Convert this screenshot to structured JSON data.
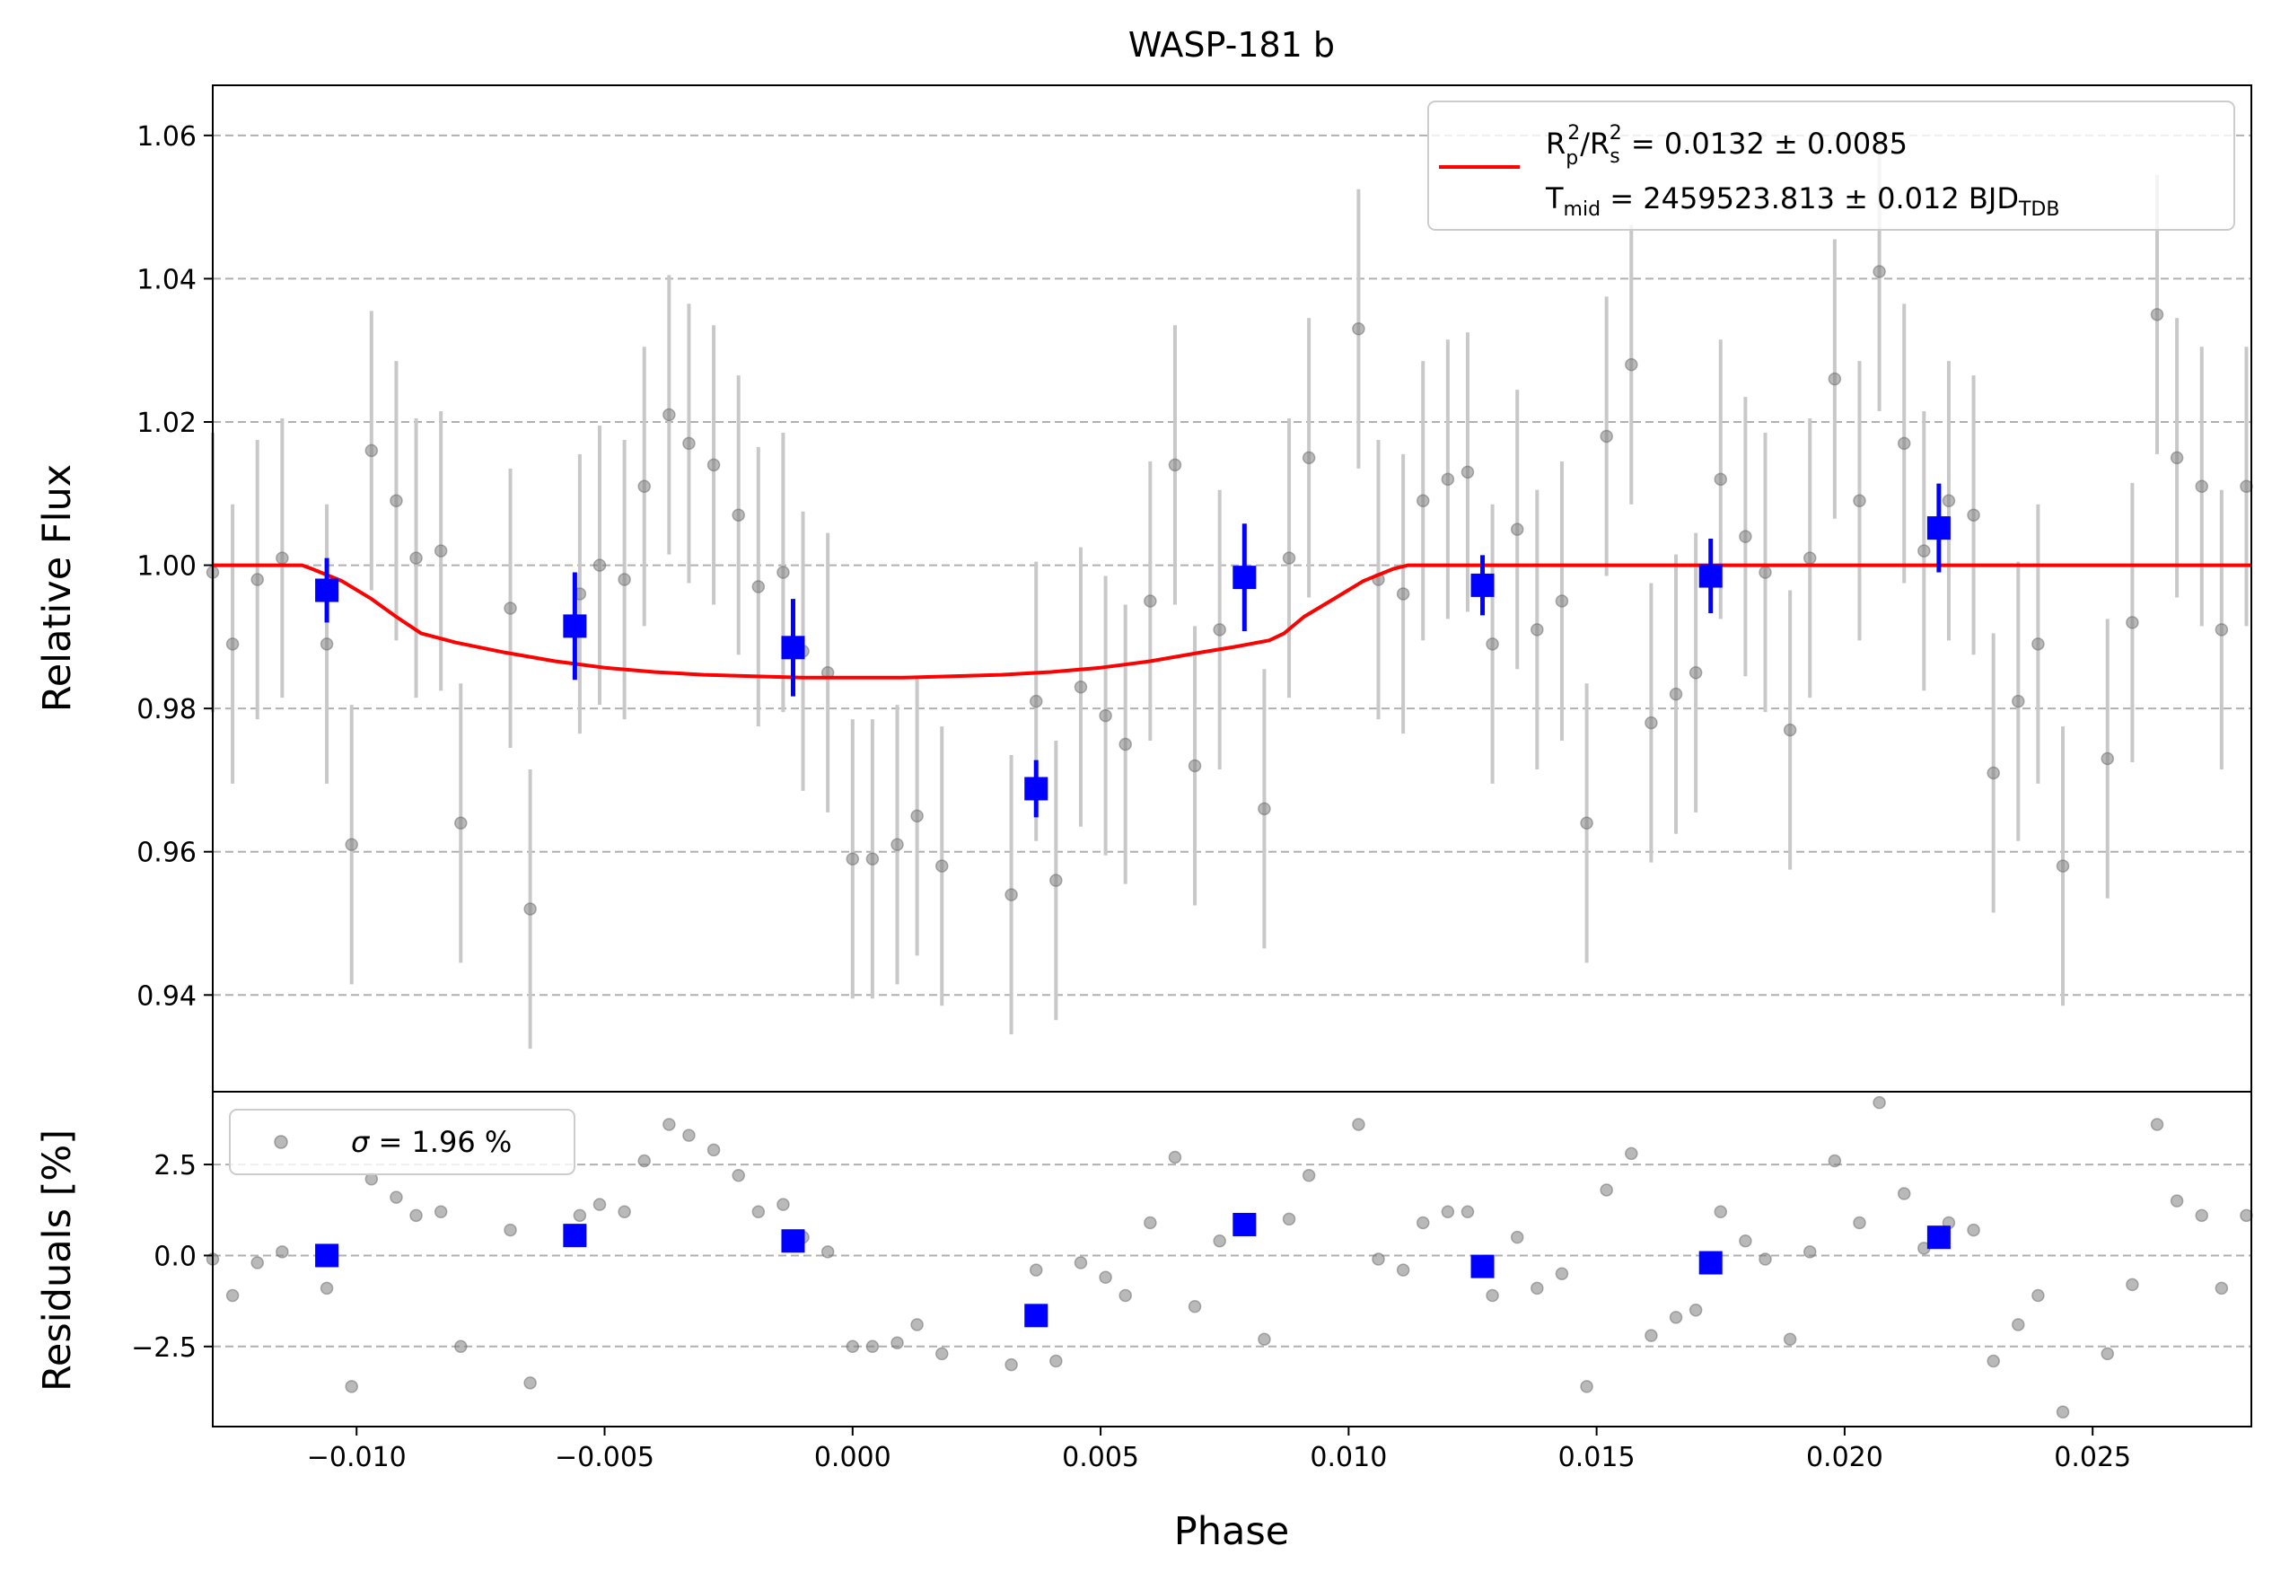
{
  "chart_data": [
    {
      "type": "scatter",
      "panel": "transit",
      "title": "WASP-181 b",
      "xlabel": "",
      "ylabel": "Relative Flux",
      "xlim": [
        -0.0129,
        0.0282
      ],
      "ylim": [
        0.9265,
        1.067
      ],
      "yticks": [
        0.94,
        0.96,
        0.98,
        1.0,
        1.02,
        1.04,
        1.06
      ],
      "ytick_labels": [
        "0.94",
        "0.96",
        "0.98",
        "1.00",
        "1.02",
        "1.04",
        "1.06"
      ],
      "grid": "horizontal dashed",
      "legend_position": "top-right",
      "legend": {
        "line1_a": "R",
        "line1_sub_p": "p",
        "line1_sup": "2",
        "line1_b": "/R",
        "line1_sub_s": "s",
        "line1_c": " = 0.0132 ± 0.0085",
        "line2_a": "T",
        "line2_sub": "mid",
        "line2_b": " = 2459523.813 ± 0.012 BJD",
        "line2_sub2": "TDB"
      },
      "colors": {
        "data": "#808080",
        "errorbar": "#c8c8c8",
        "binned": "#0000ff",
        "model": "#ff0000",
        "grid": "#b0b0b0"
      },
      "series": [
        {
          "role": "data",
          "x": [
            -0.0129,
            -0.0125,
            -0.012,
            -0.0115,
            -0.0106,
            -0.0101,
            -0.0097,
            -0.0092,
            -0.0088,
            -0.0083,
            -0.0079,
            -0.0069,
            -0.0065,
            -0.0055,
            -0.0051,
            -0.0046,
            -0.0042,
            -0.0037,
            -0.0033,
            -0.0028,
            -0.0023,
            -0.0019,
            -0.0014,
            -0.001,
            -0.0005,
            0.0,
            0.0004,
            0.0009,
            0.0013,
            0.0018,
            0.0032,
            0.0037,
            0.0041,
            0.0046,
            0.0051,
            0.0055,
            0.006,
            0.0065,
            0.0069,
            0.0074,
            0.0083,
            0.0088,
            0.0092,
            0.0102,
            0.0106,
            0.0111,
            0.0115,
            0.012,
            0.0124,
            0.0129,
            0.0134,
            0.0138,
            0.0143,
            0.0148,
            0.0152,
            0.0157,
            0.0161,
            0.0166,
            0.017,
            0.0175,
            0.018,
            0.0184,
            0.0189,
            0.0193,
            0.0198,
            0.0203,
            0.0207,
            0.0212,
            0.0216,
            0.0221,
            0.0226,
            0.023,
            0.0235,
            0.0239,
            0.0244,
            0.0253,
            0.0258,
            0.0263,
            0.0267,
            0.0272,
            0.0276,
            0.0281
          ],
          "y": [
            0.999,
            0.989,
            0.998,
            1.001,
            0.989,
            0.961,
            1.016,
            1.009,
            1.001,
            1.002,
            0.964,
            0.994,
            0.952,
            0.996,
            1.0,
            0.998,
            1.011,
            1.021,
            1.017,
            1.014,
            1.007,
            0.997,
            0.999,
            0.988,
            0.985,
            0.959,
            0.959,
            0.961,
            0.965,
            0.958,
            0.954,
            0.981,
            0.956,
            0.983,
            0.979,
            0.975,
            0.995,
            1.014,
            0.972,
            0.991,
            0.966,
            1.001,
            1.015,
            1.033,
            0.998,
            0.996,
            1.009,
            1.012,
            1.013,
            0.989,
            1.005,
            0.991,
            0.995,
            0.964,
            1.018,
            1.028,
            0.978,
            0.982,
            0.985,
            1.012,
            1.004,
            0.999,
            0.977,
            1.001,
            1.026,
            1.009,
            1.041,
            1.017,
            1.002,
            1.009,
            1.007,
            0.971,
            0.981,
            0.989,
            0.958,
            0.973,
            0.992,
            1.035,
            1.015,
            1.011,
            0.991,
            1.011
          ],
          "yerr": 0.0195
        },
        {
          "role": "binned",
          "x": [
            -0.0106,
            -0.0056,
            -0.0012,
            0.0037,
            0.0079,
            0.0127,
            0.0173,
            0.0219
          ],
          "y": [
            0.9965,
            0.9915,
            0.9885,
            0.9688,
            0.9983,
            0.9972,
            0.9985,
            1.0052
          ],
          "yerr": [
            0.0045,
            0.0075,
            0.0068,
            0.004,
            0.0075,
            0.0042,
            0.0052,
            0.0062
          ]
        },
        {
          "role": "model",
          "x": [
            -0.0129,
            -0.0111,
            -0.0109,
            -0.0103,
            -0.0097,
            -0.0092,
            -0.0087,
            -0.008,
            -0.007,
            -0.006,
            -0.005,
            -0.004,
            -0.003,
            -0.002,
            -0.001,
            0.0,
            0.001,
            0.002,
            0.003,
            0.004,
            0.005,
            0.006,
            0.007,
            0.0077,
            0.0084,
            0.0087,
            0.0091,
            0.0097,
            0.0103,
            0.0109,
            0.0112,
            0.0282
          ],
          "y": [
            1.0,
            1.0,
            0.9995,
            0.9978,
            0.9953,
            0.9928,
            0.9905,
            0.9892,
            0.9878,
            0.9866,
            0.9857,
            0.9851,
            0.9847,
            0.9845,
            0.9843,
            0.9843,
            0.9843,
            0.9845,
            0.9847,
            0.9851,
            0.9857,
            0.9866,
            0.9878,
            0.9886,
            0.9895,
            0.9905,
            0.9928,
            0.9953,
            0.9978,
            0.9995,
            1.0,
            1.0
          ]
        }
      ]
    },
    {
      "type": "scatter",
      "panel": "residuals",
      "xlabel": "Phase",
      "ylabel": "Residuals [%]",
      "xlim": [
        -0.0129,
        0.0282
      ],
      "ylim": [
        -4.7,
        4.5
      ],
      "xticks": [
        -0.01,
        -0.005,
        0.0,
        0.005,
        0.01,
        0.015,
        0.02,
        0.025
      ],
      "xtick_labels": [
        "−0.010",
        "−0.005",
        "0.000",
        "0.005",
        "0.010",
        "0.015",
        "0.020",
        "0.025"
      ],
      "yticks": [
        -2.5,
        0.0,
        2.5
      ],
      "ytick_labels": [
        "−2.5",
        "0.0",
        "2.5"
      ],
      "grid": "horizontal dashed",
      "legend_position": "top-left",
      "legend": {
        "sigma_symbol": "σ",
        "sigma_text": " = 1.96 %"
      },
      "series": [
        {
          "role": "data",
          "x": [
            -0.0129,
            -0.0125,
            -0.012,
            -0.0115,
            -0.0106,
            -0.0101,
            -0.0097,
            -0.0092,
            -0.0088,
            -0.0083,
            -0.0079,
            -0.0069,
            -0.0065,
            -0.0055,
            -0.0051,
            -0.0046,
            -0.0042,
            -0.0037,
            -0.0033,
            -0.0028,
            -0.0023,
            -0.0019,
            -0.0014,
            -0.001,
            -0.0005,
            0.0,
            0.0004,
            0.0009,
            0.0013,
            0.0018,
            0.0032,
            0.0037,
            0.0041,
            0.0046,
            0.0051,
            0.0055,
            0.006,
            0.0065,
            0.0069,
            0.0074,
            0.0083,
            0.0088,
            0.0092,
            0.0102,
            0.0106,
            0.0111,
            0.0115,
            0.012,
            0.0124,
            0.0129,
            0.0134,
            0.0138,
            0.0143,
            0.0148,
            0.0152,
            0.0157,
            0.0161,
            0.0166,
            0.017,
            0.0175,
            0.018,
            0.0184,
            0.0189,
            0.0193,
            0.0198,
            0.0203,
            0.0207,
            0.0212,
            0.0216,
            0.0221,
            0.0226,
            0.023,
            0.0235,
            0.0239,
            0.0244,
            0.0253,
            0.0258,
            0.0263,
            0.0267,
            0.0272,
            0.0276,
            0.0281
          ],
          "y": [
            -0.1,
            -1.1,
            -0.2,
            0.1,
            -0.9,
            -3.6,
            2.1,
            1.6,
            1.1,
            1.2,
            -2.5,
            0.7,
            -3.5,
            1.1,
            1.4,
            1.2,
            2.6,
            3.6,
            3.3,
            2.9,
            2.2,
            1.2,
            1.4,
            0.5,
            0.1,
            -2.5,
            -2.5,
            -2.4,
            -1.9,
            -2.7,
            -3.0,
            -0.4,
            -2.9,
            -0.2,
            -0.6,
            -1.1,
            0.9,
            2.7,
            -1.4,
            0.4,
            -2.3,
            1.0,
            2.2,
            3.6,
            -0.1,
            -0.4,
            0.9,
            1.2,
            1.2,
            -1.1,
            0.5,
            -0.9,
            -0.5,
            -3.6,
            1.8,
            2.8,
            -2.2,
            -1.7,
            -1.5,
            1.2,
            0.4,
            -0.1,
            -2.3,
            0.1,
            2.6,
            0.9,
            4.2,
            1.7,
            0.2,
            0.9,
            0.7,
            -2.9,
            -1.9,
            -1.1,
            -4.3,
            -2.7,
            -0.8,
            3.6,
            1.5,
            1.1,
            -0.9,
            1.1
          ]
        },
        {
          "role": "binned",
          "x": [
            -0.0106,
            -0.0056,
            -0.0012,
            0.0037,
            0.0079,
            0.0127,
            0.0173,
            0.0219
          ],
          "y": [
            0.0,
            0.55,
            0.4,
            -1.65,
            0.85,
            -0.3,
            -0.2,
            0.5
          ]
        }
      ]
    }
  ]
}
